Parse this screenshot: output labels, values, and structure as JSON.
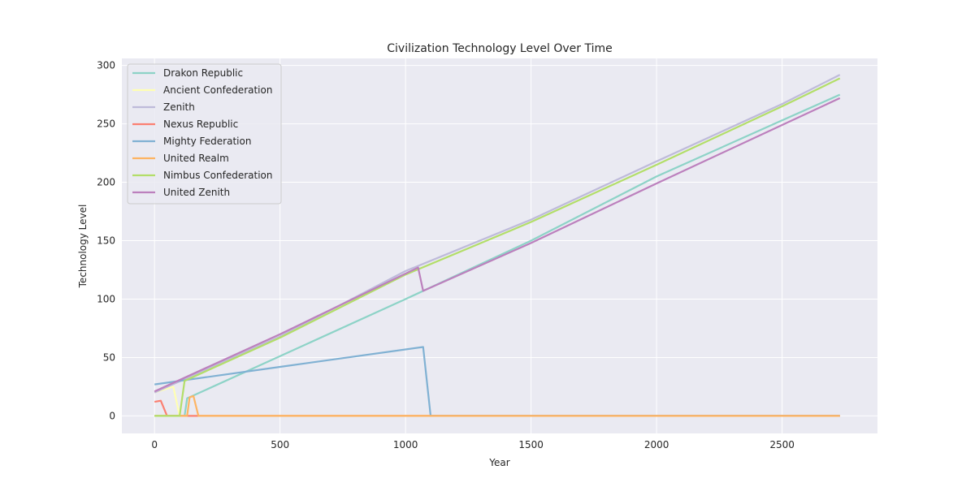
{
  "chart_data": {
    "type": "line",
    "title": "Civilization Technology Level Over Time",
    "xlabel": "Year",
    "ylabel": "Technology Level",
    "xlim": [
      -130,
      2880
    ],
    "ylim": [
      -15,
      306
    ],
    "xticks": [
      0,
      500,
      1000,
      1500,
      2000,
      2500
    ],
    "yticks": [
      0,
      50,
      100,
      150,
      200,
      250,
      300
    ],
    "grid": true,
    "legend_position": "top-left",
    "series": [
      {
        "name": "Drakon Republic",
        "color": "#8dd3c7",
        "points": [
          [
            0,
            0
          ],
          [
            120,
            0
          ],
          [
            130,
            15
          ],
          [
            1000,
            100
          ],
          [
            1500,
            150
          ],
          [
            2000,
            205
          ],
          [
            2500,
            253
          ],
          [
            2730,
            275
          ]
        ]
      },
      {
        "name": "Ancient Confederation",
        "color": "#ffffb3",
        "points": [
          [
            0,
            20
          ],
          [
            75,
            25
          ],
          [
            100,
            0
          ],
          [
            2730,
            0
          ]
        ]
      },
      {
        "name": "Zenith",
        "color": "#bebada",
        "points": [
          [
            0,
            20
          ],
          [
            500,
            68
          ],
          [
            1000,
            124
          ],
          [
            1500,
            168
          ],
          [
            2000,
            218
          ],
          [
            2500,
            267
          ],
          [
            2730,
            292
          ]
        ]
      },
      {
        "name": "Nexus Republic",
        "color": "#fb8072",
        "points": [
          [
            0,
            12
          ],
          [
            25,
            13
          ],
          [
            50,
            0
          ],
          [
            2730,
            0
          ]
        ]
      },
      {
        "name": "Mighty Federation",
        "color": "#80b1d3",
        "points": [
          [
            0,
            27
          ],
          [
            500,
            42
          ],
          [
            1070,
            59
          ],
          [
            1100,
            0
          ],
          [
            2730,
            0
          ]
        ]
      },
      {
        "name": "United Realm",
        "color": "#fdb462",
        "points": [
          [
            0,
            0
          ],
          [
            130,
            0
          ],
          [
            140,
            16
          ],
          [
            155,
            17
          ],
          [
            175,
            0
          ],
          [
            2730,
            0
          ]
        ]
      },
      {
        "name": "Nimbus Confederation",
        "color": "#b3de69",
        "points": [
          [
            0,
            0
          ],
          [
            100,
            0
          ],
          [
            120,
            30
          ],
          [
            500,
            67
          ],
          [
            1000,
            121
          ],
          [
            1500,
            166
          ],
          [
            2000,
            215
          ],
          [
            2500,
            265
          ],
          [
            2730,
            289
          ]
        ]
      },
      {
        "name": "United Zenith",
        "color": "#bc80bd",
        "points": [
          [
            0,
            21
          ],
          [
            500,
            70
          ],
          [
            1050,
            127
          ],
          [
            1070,
            107
          ],
          [
            1500,
            148
          ],
          [
            2000,
            199
          ],
          [
            2500,
            249
          ],
          [
            2730,
            272
          ]
        ]
      }
    ]
  }
}
